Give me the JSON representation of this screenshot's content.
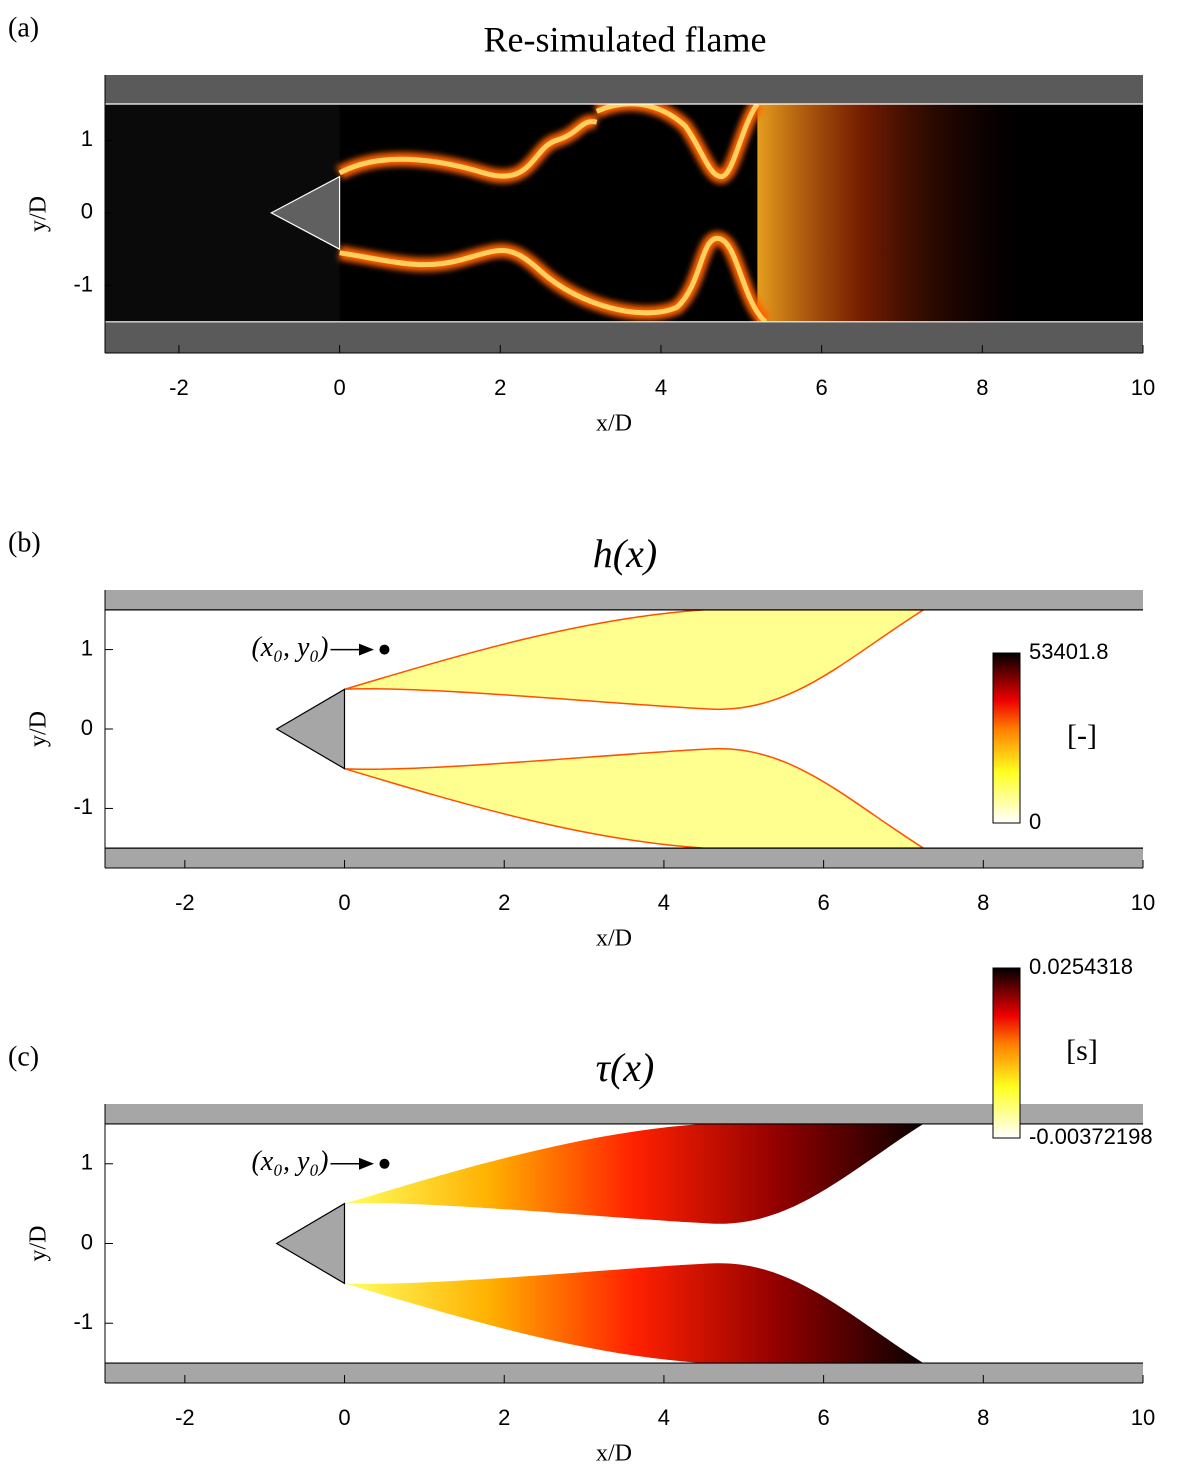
{
  "chart_data": [
    {
      "type": "field",
      "panel_label": "(a)",
      "title": "Re-simulated flame",
      "xlabel": "x/D",
      "ylabel": "y/D",
      "xlim": [
        -2.92,
        10
      ],
      "ylim": [
        -1.93,
        1.9
      ],
      "xticks": [
        -2,
        0,
        2,
        4,
        6,
        8,
        10
      ],
      "yticks": [
        -1,
        0,
        1
      ],
      "colormap": "hot"
    },
    {
      "type": "field",
      "panel_label": "(b)",
      "title": "h(x)",
      "xlabel": "x/D",
      "ylabel": "y/D",
      "xlim": [
        -3,
        10
      ],
      "ylim": [
        -1.75,
        1.75
      ],
      "xticks": [
        -2,
        0,
        2,
        4,
        6,
        8,
        10
      ],
      "yticks": [
        -1,
        0,
        1
      ],
      "annotation": "(x₀, y₀)",
      "clim": [
        0,
        53401.8
      ],
      "cticks": [
        0,
        53401.8
      ],
      "colorbar_label": "[-]",
      "colormap": "hot"
    },
    {
      "type": "field",
      "panel_label": "(c)",
      "title": "τ(x)",
      "xlabel": "x/D",
      "ylabel": "y/D",
      "xlim": [
        -3,
        10
      ],
      "ylim": [
        -1.75,
        1.75
      ],
      "xticks": [
        -2,
        0,
        2,
        4,
        6,
        8,
        10
      ],
      "yticks": [
        -1,
        0,
        1
      ],
      "annotation": "(x₀, y₀)",
      "clim": [
        -0.00372198,
        0.0254318
      ],
      "cticks": [
        -0.00372198,
        0.0254318
      ],
      "colorbar_label": "[s]",
      "colormap": "hot"
    }
  ]
}
